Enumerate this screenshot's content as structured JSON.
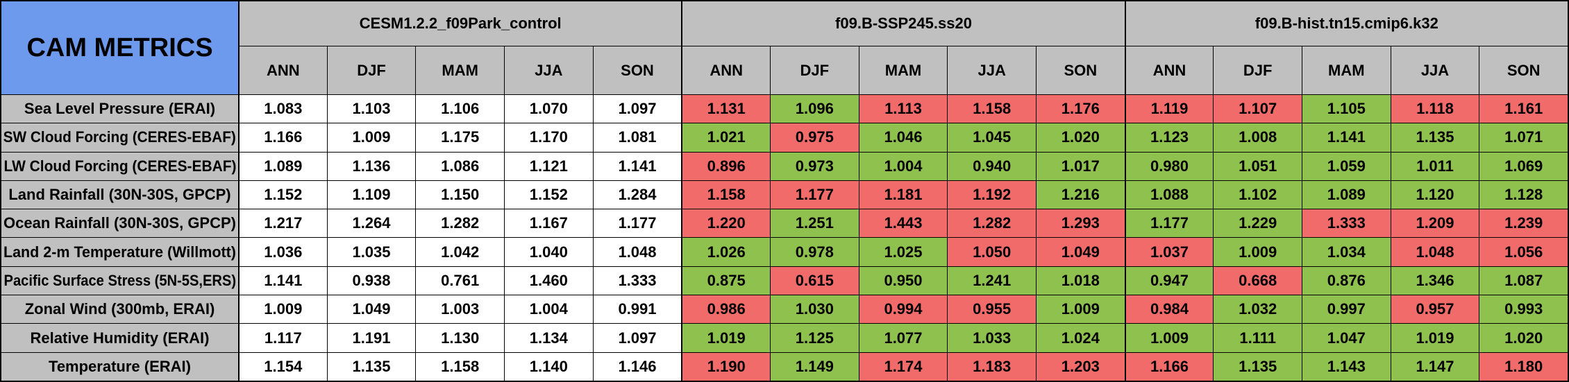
{
  "title": "CAM METRICS",
  "colors": {
    "better": "#8fc14f",
    "worse": "#f26b6b",
    "header": "#c0c0c0",
    "title_bg": "#6e9aee"
  },
  "chart_data": {
    "type": "table",
    "title": "CAM METRICS",
    "groups": [
      "CESM1.2.2_f09Park_control",
      "f09.B-SSP245.ss20",
      "f09.B-hist.tn15.cmip6.k32"
    ],
    "seasons": [
      "ANN",
      "DJF",
      "MAM",
      "JJA",
      "SON"
    ],
    "rows": [
      {
        "label": "Sea Level Pressure (ERAI)",
        "values": [
          [
            1.083,
            1.103,
            1.106,
            1.07,
            1.097
          ],
          [
            1.131,
            1.096,
            1.113,
            1.158,
            1.176
          ],
          [
            1.119,
            1.107,
            1.105,
            1.118,
            1.161
          ]
        ]
      },
      {
        "label": "SW Cloud Forcing (CERES-EBAF)",
        "values": [
          [
            1.166,
            1.009,
            1.175,
            1.17,
            1.081
          ],
          [
            1.021,
            0.975,
            1.046,
            1.045,
            1.02
          ],
          [
            1.123,
            1.008,
            1.141,
            1.135,
            1.071
          ]
        ]
      },
      {
        "label": "LW Cloud Forcing (CERES-EBAF)",
        "values": [
          [
            1.089,
            1.136,
            1.086,
            1.121,
            1.141
          ],
          [
            0.896,
            0.973,
            1.004,
            0.94,
            1.017
          ],
          [
            0.98,
            1.051,
            1.059,
            1.011,
            1.069
          ]
        ]
      },
      {
        "label": "Land Rainfall (30N-30S, GPCP)",
        "values": [
          [
            1.152,
            1.109,
            1.15,
            1.152,
            1.284
          ],
          [
            1.158,
            1.177,
            1.181,
            1.192,
            1.216
          ],
          [
            1.088,
            1.102,
            1.089,
            1.12,
            1.128
          ]
        ]
      },
      {
        "label": "Ocean Rainfall (30N-30S, GPCP)",
        "values": [
          [
            1.217,
            1.264,
            1.282,
            1.167,
            1.177
          ],
          [
            1.22,
            1.251,
            1.443,
            1.282,
            1.293
          ],
          [
            1.177,
            1.229,
            1.333,
            1.209,
            1.239
          ]
        ]
      },
      {
        "label": "Land 2-m Temperature (Willmott)",
        "values": [
          [
            1.036,
            1.035,
            1.042,
            1.04,
            1.048
          ],
          [
            1.026,
            0.978,
            1.025,
            1.05,
            1.049
          ],
          [
            1.037,
            1.009,
            1.034,
            1.048,
            1.056
          ]
        ]
      },
      {
        "label": "Pacific Surface Stress (5N-5S,ERS)",
        "values": [
          [
            1.141,
            0.938,
            0.761,
            1.46,
            1.333
          ],
          [
            0.875,
            0.615,
            0.95,
            1.241,
            1.018
          ],
          [
            0.947,
            0.668,
            0.876,
            1.346,
            1.087
          ]
        ]
      },
      {
        "label": "Zonal Wind (300mb, ERAI)",
        "values": [
          [
            1.009,
            1.049,
            1.003,
            1.004,
            0.991
          ],
          [
            0.986,
            1.03,
            0.994,
            0.955,
            1.009
          ],
          [
            0.984,
            1.032,
            0.997,
            0.957,
            0.993
          ]
        ]
      },
      {
        "label": "Relative Humidity (ERAI)",
        "values": [
          [
            1.117,
            1.191,
            1.13,
            1.134,
            1.097
          ],
          [
            1.019,
            1.125,
            1.077,
            1.033,
            1.024
          ],
          [
            1.009,
            1.111,
            1.047,
            1.019,
            1.02
          ]
        ]
      },
      {
        "label": "Temperature (ERAI)",
        "values": [
          [
            1.154,
            1.135,
            1.158,
            1.14,
            1.146
          ],
          [
            1.19,
            1.149,
            1.174,
            1.183,
            1.203
          ],
          [
            1.166,
            1.135,
            1.143,
            1.147,
            1.18
          ]
        ]
      }
    ],
    "cell_status": [
      [
        [
          "n",
          "n",
          "n",
          "n",
          "n"
        ],
        [
          "r",
          "g",
          "r",
          "r",
          "r"
        ],
        [
          "r",
          "r",
          "g",
          "r",
          "r"
        ]
      ],
      [
        [
          "n",
          "n",
          "n",
          "n",
          "n"
        ],
        [
          "g",
          "r",
          "g",
          "g",
          "g"
        ],
        [
          "g",
          "g",
          "g",
          "g",
          "g"
        ]
      ],
      [
        [
          "n",
          "n",
          "n",
          "n",
          "n"
        ],
        [
          "r",
          "g",
          "g",
          "g",
          "g"
        ],
        [
          "g",
          "g",
          "g",
          "g",
          "g"
        ]
      ],
      [
        [
          "n",
          "n",
          "n",
          "n",
          "n"
        ],
        [
          "r",
          "r",
          "r",
          "r",
          "g"
        ],
        [
          "g",
          "g",
          "g",
          "g",
          "g"
        ]
      ],
      [
        [
          "n",
          "n",
          "n",
          "n",
          "n"
        ],
        [
          "r",
          "g",
          "r",
          "r",
          "r"
        ],
        [
          "g",
          "g",
          "r",
          "r",
          "r"
        ]
      ],
      [
        [
          "n",
          "n",
          "n",
          "n",
          "n"
        ],
        [
          "g",
          "g",
          "g",
          "r",
          "r"
        ],
        [
          "r",
          "g",
          "g",
          "r",
          "r"
        ]
      ],
      [
        [
          "n",
          "n",
          "n",
          "n",
          "n"
        ],
        [
          "g",
          "r",
          "g",
          "g",
          "g"
        ],
        [
          "g",
          "r",
          "g",
          "g",
          "g"
        ]
      ],
      [
        [
          "n",
          "n",
          "n",
          "n",
          "n"
        ],
        [
          "r",
          "g",
          "r",
          "r",
          "g"
        ],
        [
          "r",
          "g",
          "g",
          "r",
          "g"
        ]
      ],
      [
        [
          "n",
          "n",
          "n",
          "n",
          "n"
        ],
        [
          "g",
          "g",
          "g",
          "g",
          "g"
        ],
        [
          "g",
          "g",
          "g",
          "g",
          "g"
        ]
      ],
      [
        [
          "n",
          "n",
          "n",
          "n",
          "n"
        ],
        [
          "r",
          "g",
          "r",
          "r",
          "r"
        ],
        [
          "r",
          "g",
          "g",
          "g",
          "r"
        ]
      ]
    ]
  }
}
